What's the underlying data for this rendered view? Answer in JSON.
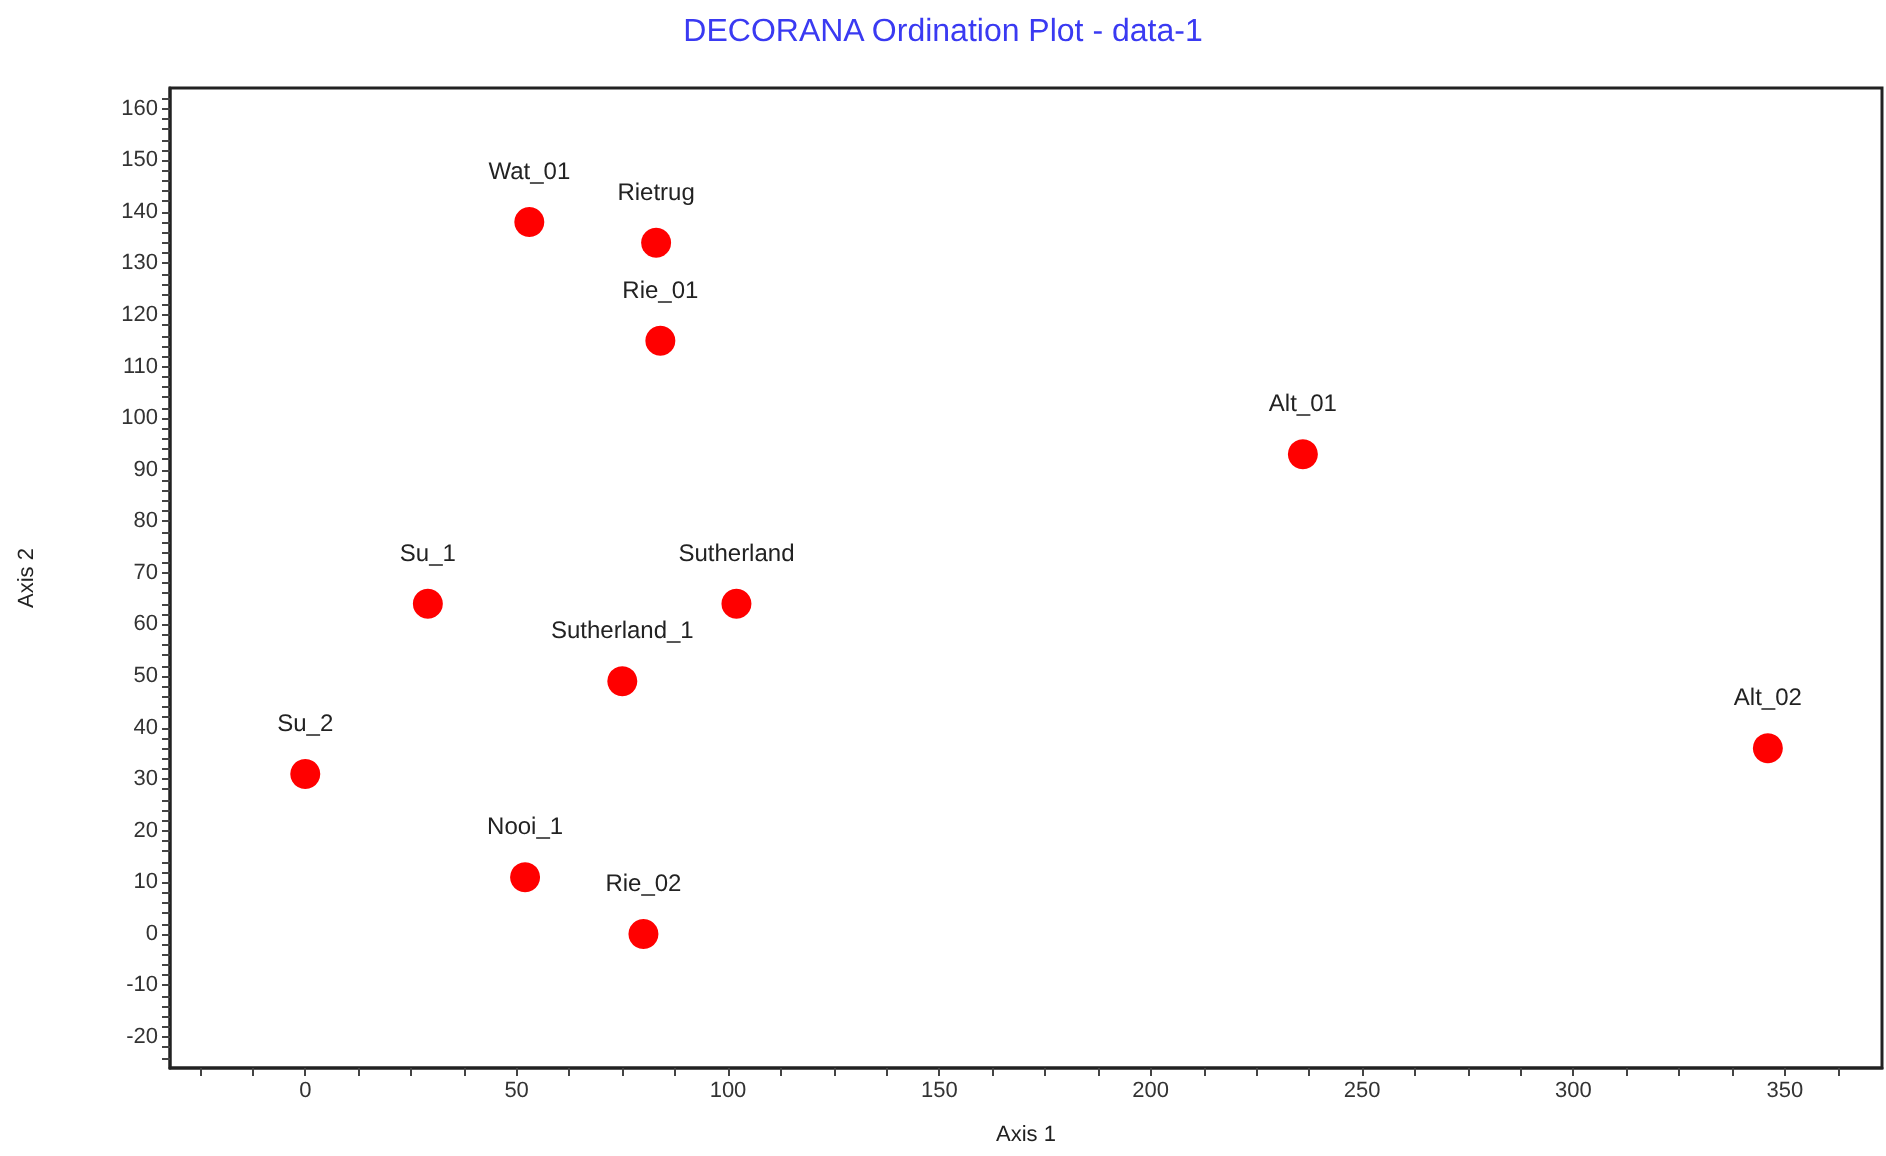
{
  "chart_data": {
    "type": "scatter",
    "title": "DECORANA Ordination Plot - data-1",
    "xlabel": "Axis 1",
    "ylabel": "Axis 2",
    "marker": "circle",
    "series": [
      {
        "name": "Wat_01",
        "color": "#ff0000",
        "x": [
          53
        ],
        "values": [
          138
        ]
      },
      {
        "name": "Rietrug",
        "color": "#ff0000",
        "x": [
          83
        ],
        "values": [
          134
        ]
      },
      {
        "name": "Rie_01",
        "color": "#ff0000",
        "x": [
          84
        ],
        "values": [
          115
        ]
      },
      {
        "name": "Alt_01",
        "color": "#ff0000",
        "x": [
          236
        ],
        "values": [
          93
        ]
      },
      {
        "name": "Su_1",
        "color": "#ff0000",
        "x": [
          29
        ],
        "values": [
          64
        ]
      },
      {
        "name": "Sutherland",
        "color": "#ff0000",
        "x": [
          102
        ],
        "values": [
          64
        ]
      },
      {
        "name": "Sutherland_1",
        "color": "#ff0000",
        "x": [
          75
        ],
        "values": [
          49
        ]
      },
      {
        "name": "Su_2",
        "color": "#ff0000",
        "x": [
          0
        ],
        "values": [
          31
        ]
      },
      {
        "name": "Alt_02",
        "color": "#ff0000",
        "x": [
          346
        ],
        "values": [
          36
        ]
      },
      {
        "name": "Nooi_1",
        "color": "#ff0000",
        "x": [
          52
        ],
        "values": [
          11
        ]
      },
      {
        "name": "Rie_02",
        "color": "#ff0000",
        "x": [
          80
        ],
        "values": [
          0
        ]
      }
    ],
    "xlim": [
      -32,
      373
    ],
    "xticks": [
      {
        "value": -25,
        "label": null
      },
      {
        "value": -12.5,
        "label": null
      },
      0,
      {
        "value": 12.5,
        "label": null
      },
      {
        "value": 25,
        "label": null
      },
      {
        "value": 37.5,
        "label": null
      },
      50,
      {
        "value": 62.5,
        "label": null
      },
      {
        "value": 75,
        "label": null
      },
      {
        "value": 87.5,
        "label": null
      },
      100,
      {
        "value": 112.5,
        "label": null
      },
      {
        "value": 125,
        "label": null
      },
      {
        "value": 137.5,
        "label": null
      },
      150,
      {
        "value": 162.5,
        "label": null
      },
      {
        "value": 175,
        "label": null
      },
      {
        "value": 187.5,
        "label": null
      },
      200,
      {
        "value": 212.5,
        "label": null
      },
      {
        "value": 225,
        "label": null
      },
      {
        "value": 237.5,
        "label": null
      },
      250,
      {
        "value": 262.5,
        "label": null
      },
      {
        "value": 275,
        "label": null
      },
      {
        "value": 287.5,
        "label": null
      },
      300,
      {
        "value": 312.5,
        "label": null
      },
      {
        "value": 325,
        "label": null
      },
      {
        "value": 337.5,
        "label": null
      },
      350,
      {
        "value": 362.5,
        "label": null
      }
    ],
    "ylim": [
      -26,
      164
    ],
    "yticks": [
      {
        "value": -24,
        "label": null
      },
      {
        "value": -22,
        "label": null
      },
      -20,
      {
        "value": -18,
        "label": null
      },
      {
        "value": -16,
        "label": null
      },
      {
        "value": -14,
        "label": null
      },
      {
        "value": -12,
        "label": null
      },
      -10,
      {
        "value": -8,
        "label": null
      },
      {
        "value": -6,
        "label": null
      },
      {
        "value": -4,
        "label": null
      },
      {
        "value": -2,
        "label": null
      },
      0,
      {
        "value": 2,
        "label": null
      },
      {
        "value": 4,
        "label": null
      },
      {
        "value": 6,
        "label": null
      },
      {
        "value": 8,
        "label": null
      },
      10,
      {
        "value": 12,
        "label": null
      },
      {
        "value": 14,
        "label": null
      },
      {
        "value": 16,
        "label": null
      },
      {
        "value": 18,
        "label": null
      },
      20,
      {
        "value": 22,
        "label": null
      },
      {
        "value": 24,
        "label": null
      },
      {
        "value": 26,
        "label": null
      },
      {
        "value": 28,
        "label": null
      },
      30,
      {
        "value": 32,
        "label": null
      },
      {
        "value": 34,
        "label": null
      },
      {
        "value": 36,
        "label": null
      },
      {
        "value": 38,
        "label": null
      },
      40,
      {
        "value": 42,
        "label": null
      },
      {
        "value": 44,
        "label": null
      },
      {
        "value": 46,
        "label": null
      },
      {
        "value": 48,
        "label": null
      },
      50,
      {
        "value": 52,
        "label": null
      },
      {
        "value": 54,
        "label": null
      },
      {
        "value": 56,
        "label": null
      },
      {
        "value": 58,
        "label": null
      },
      60,
      {
        "value": 62,
        "label": null
      },
      {
        "value": 64,
        "label": null
      },
      {
        "value": 66,
        "label": null
      },
      {
        "value": 68,
        "label": null
      },
      70,
      {
        "value": 72,
        "label": null
      },
      {
        "value": 74,
        "label": null
      },
      {
        "value": 76,
        "label": null
      },
      {
        "value": 78,
        "label": null
      },
      80,
      {
        "value": 82,
        "label": null
      },
      {
        "value": 84,
        "label": null
      },
      {
        "value": 86,
        "label": null
      },
      {
        "value": 88,
        "label": null
      },
      90,
      {
        "value": 92,
        "label": null
      },
      {
        "value": 94,
        "label": null
      },
      {
        "value": 96,
        "label": null
      },
      {
        "value": 98,
        "label": null
      },
      100,
      {
        "value": 102,
        "label": null
      },
      {
        "value": 104,
        "label": null
      },
      {
        "value": 106,
        "label": null
      },
      {
        "value": 108,
        "label": null
      },
      110,
      {
        "value": 112,
        "label": null
      },
      {
        "value": 114,
        "label": null
      },
      {
        "value": 116,
        "label": null
      },
      {
        "value": 118,
        "label": null
      },
      120,
      {
        "value": 122,
        "label": null
      },
      {
        "value": 124,
        "label": null
      },
      {
        "value": 126,
        "label": null
      },
      {
        "value": 128,
        "label": null
      },
      130,
      {
        "value": 132,
        "label": null
      },
      {
        "value": 134,
        "label": null
      },
      {
        "value": 136,
        "label": null
      },
      {
        "value": 138,
        "label": null
      },
      140,
      {
        "value": 142,
        "label": null
      },
      {
        "value": 144,
        "label": null
      },
      {
        "value": 146,
        "label": null
      },
      {
        "value": 148,
        "label": null
      },
      150,
      {
        "value": 152,
        "label": null
      },
      {
        "value": 154,
        "label": null
      },
      {
        "value": 156,
        "label": null
      },
      {
        "value": 158,
        "label": null
      },
      160,
      {
        "value": 162,
        "label": null
      }
    ]
  }
}
